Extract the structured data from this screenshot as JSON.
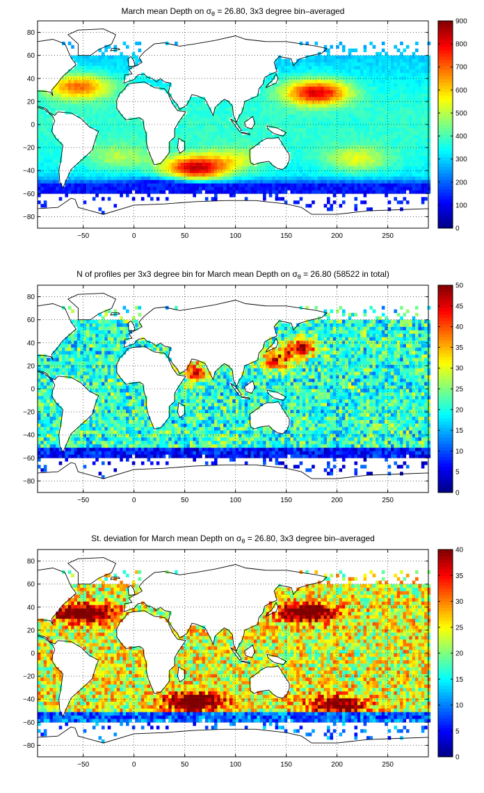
{
  "chart_data": [
    {
      "type": "heatmap",
      "title": "March mean Depth on σ_θ = 26.80, 3x3 degree bin–averaged",
      "title_parts": {
        "pre": "March mean Depth on σ",
        "sub": "θ",
        "post": " = 26.80, 3x3 degree bin–averaged"
      },
      "xlabel": "",
      "ylabel": "",
      "xlim": [
        -95,
        290
      ],
      "ylim": [
        -90,
        90
      ],
      "xticks": [
        -50,
        0,
        50,
        100,
        150,
        200,
        250
      ],
      "yticks": [
        -80,
        -60,
        -40,
        -20,
        0,
        20,
        40,
        60,
        80
      ],
      "grid": true,
      "colormap": "jet",
      "clim": [
        0,
        900
      ],
      "colorbar_ticks": [
        0,
        100,
        200,
        300,
        400,
        500,
        600,
        700,
        800,
        900
      ],
      "colorbar_tick_labels": [
        "0",
        "100",
        "200",
        "300",
        "400",
        "500",
        "600",
        "700",
        "800",
        "900"
      ],
      "bin_size_deg": 3,
      "field_anchors": [
        {
          "lon": -55,
          "lat": 33,
          "value": 680
        },
        {
          "lon": 180,
          "lat": 28,
          "value": 800
        },
        {
          "lon": 60,
          "lat": -38,
          "value": 820
        },
        {
          "lon": 220,
          "lat": -30,
          "value": 520
        },
        {
          "lon": 100,
          "lat": -30,
          "value": 480
        },
        {
          "lon": -15,
          "lat": -28,
          "value": 470
        },
        {
          "lon": -20,
          "lat": 10,
          "value": 330
        },
        {
          "lon": 200,
          "lat": 5,
          "value": 320
        },
        {
          "lon": 70,
          "lat": 5,
          "value": 330
        },
        {
          "lon": 30,
          "lat": -57,
          "value": 120
        }
      ]
    },
    {
      "type": "heatmap",
      "title": "N of profiles per 3x3 degree bin for March mean Depth on σ_θ = 26.80 (58522 in total)",
      "title_parts": {
        "pre": "N of profiles per 3x3 degree bin for March mean Depth on σ",
        "sub": "θ",
        "post": " = 26.80 (58522 in total)"
      },
      "xlabel": "",
      "ylabel": "",
      "xlim": [
        -95,
        290
      ],
      "ylim": [
        -90,
        90
      ],
      "xticks": [
        -50,
        0,
        50,
        100,
        150,
        200,
        250
      ],
      "yticks": [
        -80,
        -60,
        -40,
        -20,
        0,
        20,
        40,
        60,
        80
      ],
      "grid": true,
      "colormap": "jet",
      "clim": [
        0,
        50
      ],
      "colorbar_ticks": [
        0,
        5,
        10,
        15,
        20,
        25,
        30,
        35,
        40,
        45,
        50
      ],
      "colorbar_tick_labels": [
        "0",
        "5",
        "10",
        "15",
        "20",
        "25",
        "30",
        "35",
        "40",
        "45",
        "50"
      ],
      "bin_size_deg": 3,
      "total_profiles": 58522,
      "field_anchors": [
        {
          "lon": 165,
          "lat": 35,
          "value": 48
        },
        {
          "lon": 140,
          "lat": 25,
          "value": 45
        },
        {
          "lon": 60,
          "lat": 15,
          "value": 42
        },
        {
          "lon": 200,
          "lat": -10,
          "value": 20
        },
        {
          "lon": -30,
          "lat": 0,
          "value": 12
        },
        {
          "lon": 80,
          "lat": -30,
          "value": 12
        }
      ]
    },
    {
      "type": "heatmap",
      "title": "St. deviation for March mean Depth on σ_θ = 26.80, 3x3 degree bin–averaged",
      "title_parts": {
        "pre": "St. deviation for March mean Depth on σ",
        "sub": "θ",
        "post": " = 26.80, 3x3 degree bin–averaged"
      },
      "xlabel": "",
      "ylabel": "",
      "xlim": [
        -95,
        290
      ],
      "ylim": [
        -90,
        90
      ],
      "xticks": [
        -50,
        0,
        50,
        100,
        150,
        200,
        250
      ],
      "yticks": [
        -80,
        -60,
        -40,
        -20,
        0,
        20,
        40,
        60,
        80
      ],
      "grid": true,
      "colormap": "jet",
      "clim": [
        0,
        40
      ],
      "colorbar_ticks": [
        0,
        5,
        10,
        15,
        20,
        25,
        30,
        35,
        40
      ],
      "colorbar_tick_labels": [
        "0",
        "5",
        "10",
        "15",
        "20",
        "25",
        "30",
        "35",
        "40"
      ],
      "bin_size_deg": 3,
      "field_anchors": [
        {
          "lon": -50,
          "lat": 35,
          "value": 40
        },
        {
          "lon": 170,
          "lat": 35,
          "value": 40
        },
        {
          "lon": 60,
          "lat": -42,
          "value": 40
        },
        {
          "lon": 200,
          "lat": -45,
          "value": 36
        },
        {
          "lon": 200,
          "lat": 0,
          "value": 25
        },
        {
          "lon": -20,
          "lat": -10,
          "value": 22
        },
        {
          "lon": 80,
          "lat": -15,
          "value": 24
        }
      ]
    }
  ]
}
